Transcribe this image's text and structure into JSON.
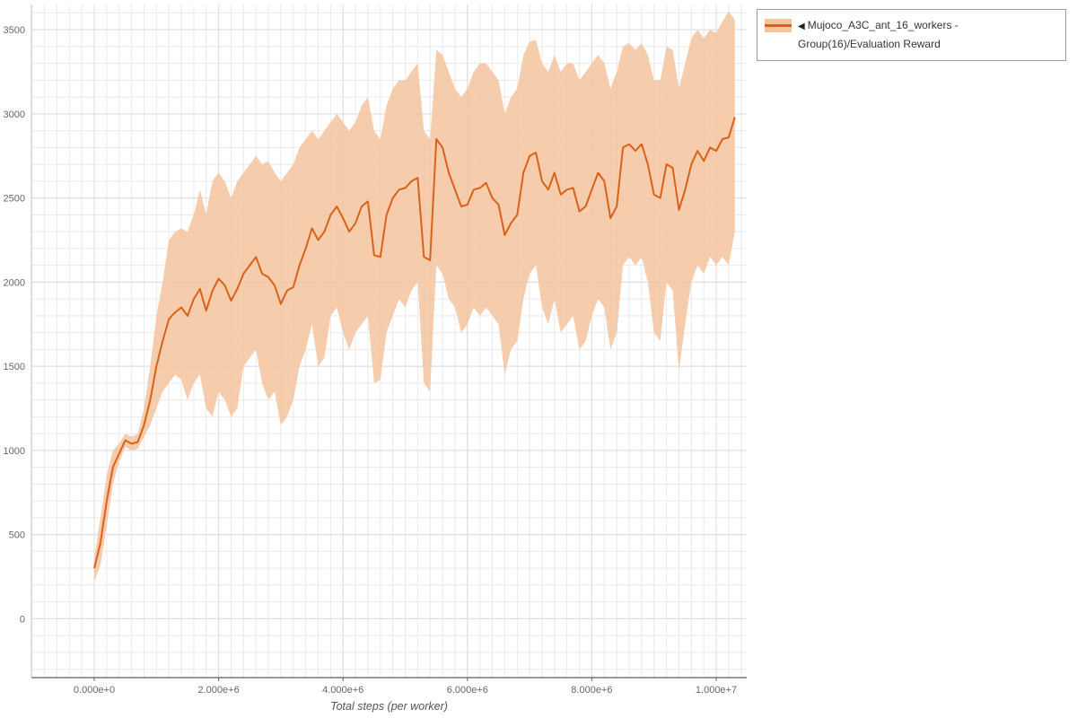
{
  "page": {
    "background": "#ffffff"
  },
  "legend": {
    "collapse_icon": "◀",
    "label": "Mujoco_A3C_ant_16_workers - Group(16)/Evaluation Reward"
  },
  "axes": {
    "x_label": "Total steps (per worker)",
    "x_tick_values": [
      0,
      2000000,
      4000000,
      6000000,
      8000000,
      10000000
    ],
    "x_tick_labels": [
      "0.000e+0",
      "2.000e+6",
      "4.000e+6",
      "6.000e+6",
      "8.000e+6",
      "1.000e+7"
    ],
    "y_tick_values": [
      0,
      500,
      1000,
      1500,
      2000,
      2500,
      3000,
      3500
    ],
    "y_tick_labels": [
      "0",
      "500",
      "1000",
      "1500",
      "2000",
      "2500",
      "3000",
      "3500"
    ]
  },
  "chart_data": {
    "type": "line",
    "title": "",
    "xlabel": "Total steps (per worker)",
    "ylabel": "",
    "xlim": [
      -1010000,
      10490000
    ],
    "ylim": [
      -350,
      3650
    ],
    "grid": true,
    "grid_x_step": 200000,
    "grid_y_step": 100,
    "legend_position": "top-right-outside",
    "series": [
      {
        "name": "Mujoco_A3C_ant_16_workers - Group(16)/Evaluation Reward",
        "color": "#d9611a",
        "band_color": "#f4c49e",
        "x_start": 0,
        "x_step": 100000,
        "mean": [
          300,
          450,
          700,
          900,
          980,
          1060,
          1040,
          1050,
          1150,
          1300,
          1500,
          1650,
          1780,
          1820,
          1850,
          1800,
          1900,
          1960,
          1830,
          1950,
          2020,
          1980,
          1890,
          1960,
          2050,
          2100,
          2150,
          2050,
          2030,
          1980,
          1870,
          1950,
          1970,
          2100,
          2200,
          2320,
          2250,
          2300,
          2400,
          2450,
          2380,
          2300,
          2350,
          2450,
          2480,
          2160,
          2150,
          2400,
          2500,
          2550,
          2560,
          2600,
          2620,
          2150,
          2130,
          2850,
          2800,
          2650,
          2550,
          2450,
          2460,
          2550,
          2560,
          2590,
          2500,
          2460,
          2280,
          2350,
          2400,
          2650,
          2750,
          2770,
          2600,
          2550,
          2650,
          2520,
          2550,
          2560,
          2420,
          2450,
          2550,
          2650,
          2600,
          2380,
          2450,
          2800,
          2820,
          2780,
          2820,
          2700,
          2520,
          2500,
          2700,
          2680,
          2430,
          2550,
          2700,
          2780,
          2720,
          2800,
          2780,
          2850,
          2860,
          2980
        ],
        "lower": [
          220,
          320,
          550,
          800,
          930,
          1020,
          1000,
          1010,
          1080,
          1150,
          1250,
          1350,
          1400,
          1450,
          1420,
          1300,
          1400,
          1450,
          1250,
          1200,
          1350,
          1300,
          1200,
          1250,
          1500,
          1550,
          1600,
          1400,
          1300,
          1350,
          1150,
          1200,
          1300,
          1500,
          1600,
          1750,
          1500,
          1550,
          1800,
          1850,
          1700,
          1600,
          1700,
          1750,
          1800,
          1400,
          1420,
          1700,
          1800,
          1900,
          1850,
          1950,
          2000,
          1400,
          1350,
          2100,
          2050,
          1900,
          1850,
          1700,
          1750,
          1850,
          1800,
          1850,
          1800,
          1750,
          1450,
          1600,
          1650,
          1900,
          2050,
          2100,
          1850,
          1750,
          1900,
          1700,
          1750,
          1800,
          1600,
          1650,
          1800,
          1900,
          1850,
          1600,
          1700,
          2100,
          2150,
          2100,
          2150,
          2000,
          1700,
          1650,
          2000,
          1950,
          1470,
          1750,
          2000,
          2100,
          2050,
          2150,
          2100,
          2150,
          2100,
          2300
        ],
        "upper": [
          360,
          600,
          850,
          1000,
          1040,
          1100,
          1080,
          1100,
          1250,
          1500,
          1800,
          2000,
          2250,
          2300,
          2320,
          2300,
          2400,
          2550,
          2400,
          2600,
          2650,
          2600,
          2500,
          2600,
          2650,
          2700,
          2750,
          2700,
          2720,
          2650,
          2600,
          2650,
          2700,
          2800,
          2850,
          2900,
          2850,
          2900,
          2950,
          3000,
          2950,
          2900,
          2950,
          3050,
          3100,
          2900,
          2850,
          3050,
          3150,
          3200,
          3200,
          3250,
          3300,
          2900,
          2850,
          3380,
          3350,
          3250,
          3150,
          3100,
          3150,
          3250,
          3300,
          3300,
          3250,
          3200,
          3000,
          3100,
          3150,
          3350,
          3430,
          3440,
          3300,
          3250,
          3350,
          3250,
          3300,
          3300,
          3200,
          3250,
          3300,
          3350,
          3300,
          3150,
          3250,
          3400,
          3420,
          3380,
          3420,
          3350,
          3200,
          3200,
          3400,
          3380,
          3150,
          3300,
          3450,
          3500,
          3450,
          3500,
          3480,
          3550,
          3610,
          3560
        ]
      }
    ]
  }
}
